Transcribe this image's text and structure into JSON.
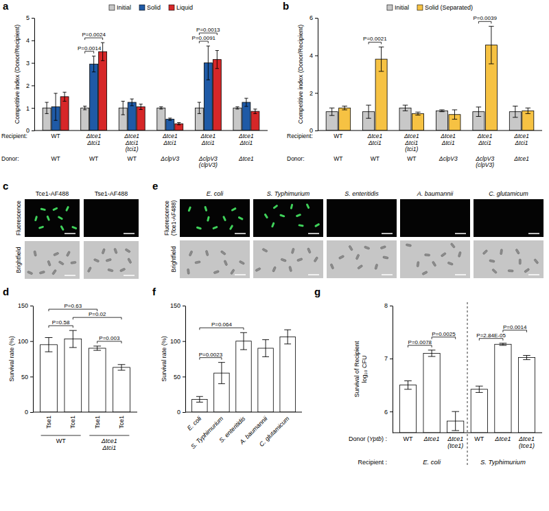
{
  "chart_data": [
    {
      "type": "bar",
      "title": "a",
      "y_label": "Competitive index (Donor/Recipient)",
      "ylim": [
        0,
        5
      ],
      "yticks": [
        0,
        1,
        2,
        3,
        4,
        5
      ],
      "legend": "top",
      "row_labels": [
        "Recipient:",
        "Donor:"
      ],
      "categories": [
        "WT",
        "Δtce1Δtci1",
        "Δtce1Δtci1(tci1)",
        "Δtce1Δtci1",
        "Δtce1Δtci1",
        "Δtce1Δtci1"
      ],
      "categories2": [
        "WT",
        "WT",
        "WT",
        "ΔclpV3",
        "ΔclpV3(clpV3)",
        "Δtce1"
      ],
      "series": [
        {
          "name": "Initial",
          "color": "#c8c8c8",
          "values": [
            1.0,
            1.0,
            1.0,
            1.0,
            1.0,
            1.0
          ],
          "errors": [
            0.25,
            0.08,
            0.3,
            0.05,
            0.25,
            0.05
          ]
        },
        {
          "name": "Solid",
          "color": "#1f5aa6",
          "values": [
            1.05,
            2.95,
            1.25,
            0.5,
            3.0,
            1.25
          ],
          "errors": [
            0.6,
            0.35,
            0.15,
            0.05,
            0.75,
            0.18
          ]
        },
        {
          "name": "Liquid",
          "color": "#d62728",
          "values": [
            1.5,
            3.5,
            1.05,
            0.3,
            3.15,
            0.85
          ],
          "errors": [
            0.2,
            0.4,
            0.12,
            0.05,
            0.4,
            0.1
          ]
        }
      ],
      "annotations": [
        {
          "text": "P=0.0014",
          "group": 1,
          "from": 0,
          "to": 1
        },
        {
          "text": "P=0.0024",
          "group": 1,
          "from": 0,
          "to": 2
        },
        {
          "text": "P=0.0091",
          "group": 4,
          "from": 0,
          "to": 1
        },
        {
          "text": "P=0.0013",
          "group": 4,
          "from": 0,
          "to": 2
        }
      ]
    },
    {
      "type": "bar",
      "title": "b",
      "y_label": "Competitive index (Donor/Recipient)",
      "ylim": [
        0,
        6
      ],
      "yticks": [
        0,
        2,
        4,
        6
      ],
      "legend": "top",
      "row_labels": [
        "Recipient:",
        "Donor:"
      ],
      "categories": [
        "WT",
        "Δtce1Δtci1",
        "Δtce1Δtci1(tci1)",
        "Δtce1Δtci1",
        "Δtce1Δtci1",
        "Δtce1Δtci1"
      ],
      "categories2": [
        "WT",
        "WT",
        "WT",
        "ΔclpV3",
        "ΔclpV3(clpV3)",
        "Δtce1"
      ],
      "series": [
        {
          "name": "Initial",
          "color": "#c8c8c8",
          "values": [
            1.0,
            1.0,
            1.2,
            1.05,
            1.0,
            1.0
          ],
          "errors": [
            0.2,
            0.35,
            0.15,
            0.05,
            0.25,
            0.3
          ]
        },
        {
          "name": "Solid (Separated)",
          "color": "#f6c243",
          "values": [
            1.2,
            3.8,
            0.9,
            0.85,
            4.55,
            1.05
          ],
          "errors": [
            0.1,
            0.65,
            0.08,
            0.25,
            1.0,
            0.15
          ]
        }
      ],
      "annotations": [
        {
          "text": "P=0.0021",
          "group": 1,
          "from": 0,
          "to": 1
        },
        {
          "text": "P=0.0039",
          "group": 4,
          "from": 0,
          "to": 1
        }
      ]
    },
    {
      "type": "bar",
      "title": "d",
      "y_label": "Survival rate (%)",
      "ylim": [
        0,
        150
      ],
      "yticks": [
        0,
        50,
        100,
        150
      ],
      "color": "#ffffff",
      "categories": [
        "Tse1",
        "Tce1",
        "Tse1",
        "Tce1"
      ],
      "values": [
        95,
        103,
        90,
        63
      ],
      "errors": [
        10,
        12,
        3,
        4
      ],
      "groups": [
        {
          "label": "WT",
          "from": 0,
          "to": 1
        },
        {
          "label": "Δtce1Δtci1",
          "from": 2,
          "to": 3
        }
      ],
      "annotations": [
        {
          "text": "P=0.58",
          "from": 0,
          "to": 1
        },
        {
          "text": "P=0.003",
          "from": 2,
          "to": 3
        },
        {
          "text": "P=0.02",
          "from": 1,
          "to": 3
        },
        {
          "text": "P=0.63",
          "from": 0,
          "to": 2
        }
      ]
    },
    {
      "type": "bar",
      "title": "f",
      "y_label": "Survival rate (%)",
      "ylim": [
        0,
        150
      ],
      "yticks": [
        0,
        50,
        100,
        150
      ],
      "color": "#ffffff",
      "categories": [
        "E. coli",
        "S. Typhimurium",
        "S. enteritidis",
        "A. baumannii",
        "C. glutamicum"
      ],
      "values": [
        18,
        55,
        100,
        90,
        106
      ],
      "errors": [
        4,
        15,
        12,
        12,
        10
      ],
      "annotations": [
        {
          "text": "P=0.0023",
          "from": 0,
          "to": 1
        },
        {
          "text": "P=0.064",
          "from": 0,
          "to": 2
        }
      ]
    },
    {
      "type": "bar",
      "title": "g",
      "y_label": [
        "Survival of Recipient",
        "log₁₀ CFU"
      ],
      "ylim": [
        5.6,
        8
      ],
      "yticks": [
        6,
        7,
        8
      ],
      "color": "#ffffff",
      "row_labels": [
        "Donor (Yptb) :",
        "Recipient :"
      ],
      "categories": [
        "WT",
        "Δtce1",
        "Δtce1(tce1)",
        "WT",
        "Δtce1",
        "Δtce1(tce1)"
      ],
      "values": [
        6.5,
        7.1,
        5.82,
        6.42,
        7.27,
        7.02
      ],
      "errors": [
        0.08,
        0.06,
        0.18,
        0.06,
        0.02,
        0.04
      ],
      "groups": [
        {
          "label": "E. coli",
          "from": 0,
          "to": 2
        },
        {
          "label": "S. Typhimurium",
          "from": 3,
          "to": 5
        }
      ],
      "annotations": [
        {
          "text": "P=0.0078",
          "from": 0,
          "to": 1
        },
        {
          "text": "P=0.0025",
          "from": 1,
          "to": 2
        },
        {
          "text": "P=2.84E-05",
          "from": 3,
          "to": 4
        },
        {
          "text": "P=0.0014",
          "from": 4,
          "to": 5
        }
      ]
    }
  ],
  "panels": [
    {
      "label": "c",
      "columns": [
        "Tce1-AF488",
        "Tse1-AF488"
      ],
      "rows": [
        [
          "Fluorescence"
        ],
        [
          "Brightfield"
        ]
      ],
      "labeled": [
        true,
        false
      ]
    },
    {
      "label": "e",
      "columns": [
        "E. coli",
        "S. Typhimurium",
        "S. enteritidis",
        "A. baumannii",
        "C. glutamicum"
      ],
      "rows": [
        [
          "Fluorescence",
          "(Tce1-AF488)"
        ],
        [
          "Brightfield"
        ]
      ],
      "labeled": [
        true,
        true,
        false,
        false,
        false
      ]
    }
  ]
}
